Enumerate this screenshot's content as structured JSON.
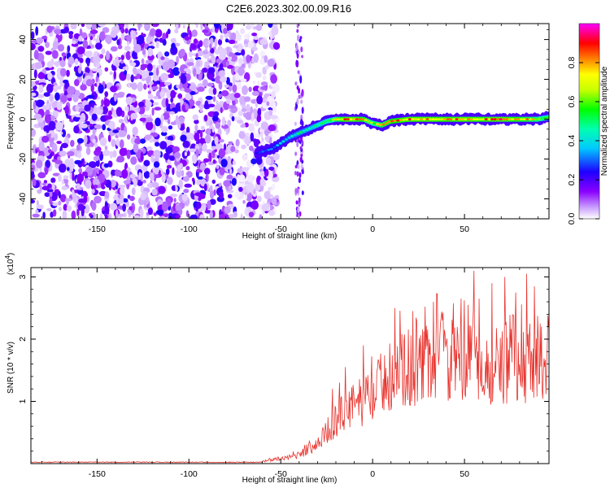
{
  "title": "C2E6.2023.302.00.09.R16",
  "colors": {
    "snr_line": "#e8322c",
    "grid": "#000000",
    "background": "#ffffff"
  },
  "chart_data": [
    {
      "type": "heatmap",
      "description_panel": "top",
      "xlabel": "Height of straight line (km)",
      "ylabel": "Frequency (Hz)",
      "xlim": [
        -186,
        96
      ],
      "ylim": [
        -50,
        48
      ],
      "x_ticks": [
        -150,
        -100,
        -50,
        0,
        50
      ],
      "y_ticks": [
        -40,
        -20,
        0,
        20,
        40
      ],
      "colorbar": {
        "label": "Normalized spectral amplitude",
        "range": [
          0.0,
          1.0
        ],
        "ticks": [
          0.0,
          0.2,
          0.4,
          0.6,
          0.8
        ],
        "tick_labels": [
          "0.0",
          "0.2",
          "0.4",
          "0.6",
          "0.8"
        ],
        "colormap": "rainbow (white-violet-blue-cyan-green-yellow-red-magenta)"
      },
      "signal_track": {
        "x": [
          -63,
          -55,
          -50,
          -45,
          -40,
          -35,
          -30,
          -25,
          -20,
          -15,
          -10,
          -5,
          0,
          5,
          10,
          20,
          30,
          40,
          50,
          60,
          70,
          80,
          90,
          96
        ],
        "freq_hz": [
          -17,
          -15,
          -12,
          -9,
          -7,
          -5,
          -3,
          -1,
          0,
          0,
          0,
          0,
          -2,
          -3,
          -1,
          0,
          0,
          0,
          0,
          0,
          0,
          0,
          0,
          1
        ],
        "amplitude": [
          0.3,
          0.35,
          0.4,
          0.45,
          0.5,
          0.5,
          0.55,
          0.6,
          0.75,
          0.9,
          0.9,
          0.85,
          0.7,
          0.8,
          0.85,
          0.9,
          0.9,
          0.88,
          0.9,
          0.88,
          0.9,
          0.85,
          0.75,
          0.6
        ]
      },
      "noise_region_x": [
        -186,
        -60
      ]
    },
    {
      "type": "line",
      "description_panel": "bottom",
      "xlabel": "Height of straight line (km)",
      "ylabel": "SNR (10 * v/v)",
      "y_multiplier": "(x10",
      "y_multiplier_exp": "4",
      "y_multiplier_close": ")",
      "xlim": [
        -186,
        96
      ],
      "ylim": [
        0,
        3.15
      ],
      "x_ticks": [
        -150,
        -100,
        -50,
        0,
        50
      ],
      "y_ticks": [
        1,
        2,
        3
      ],
      "series": [
        {
          "envelope_x": [
            -186,
            -120,
            -70,
            -60,
            -50,
            -45,
            -40,
            -35,
            -30,
            -25,
            -20,
            -15,
            -10,
            -5,
            0,
            5,
            10,
            20,
            30,
            40,
            50,
            55,
            60,
            70,
            80,
            90,
            96
          ],
          "envelope_y": [
            0.02,
            0.02,
            0.03,
            0.04,
            0.08,
            0.12,
            0.15,
            0.25,
            0.35,
            0.55,
            0.75,
            0.9,
            1.0,
            1.1,
            1.25,
            1.4,
            1.55,
            1.65,
            1.75,
            1.8,
            1.75,
            1.7,
            1.65,
            1.7,
            1.75,
            1.8,
            1.85
          ],
          "peaks_x": [
            -37,
            -30,
            -22,
            -18,
            -15,
            -5,
            12,
            22,
            33,
            38,
            48,
            52,
            55,
            58,
            65,
            72,
            78,
            84,
            88,
            92
          ],
          "peaks_y": [
            0.3,
            0.35,
            1.2,
            1.3,
            1.55,
            1.9,
            2.5,
            2.45,
            2.6,
            2.3,
            2.65,
            2.55,
            3.1,
            2.65,
            2.9,
            3.0,
            2.75,
            3.05,
            2.85,
            2.2
          ]
        }
      ]
    }
  ]
}
